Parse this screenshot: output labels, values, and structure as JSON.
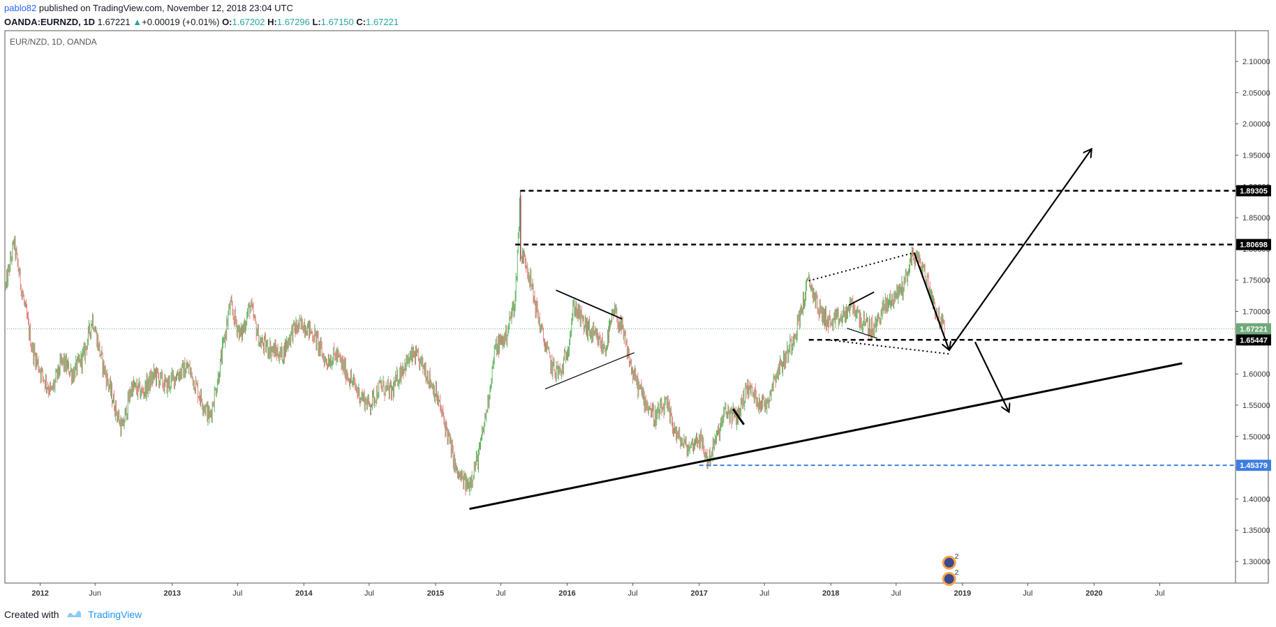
{
  "header": {
    "author": "pablo82",
    "published": "published on TradingView.com, November 12, 2018 23:04 UTC",
    "symbol": "OANDA:EURNZD, 1D",
    "last": "1.67221",
    "change_arrow": "▲",
    "change": "+0.00019 (+0.01%)",
    "o_label": "O:",
    "o_value": "1.67202",
    "h_label": "H:",
    "h_value": "1.67296",
    "l_label": "L:",
    "l_value": "1.67150",
    "c_label": "C:",
    "c_value": "1.67221"
  },
  "footer": {
    "created_with": "Created with",
    "brand": "TradingView"
  },
  "colors": {
    "up": "#26a69a",
    "down": "#ef5350",
    "candle_up": "#4caf50",
    "candle_down": "#e57373",
    "drawing": "#000000",
    "support_blue": "#3d7fe0",
    "last_price_bg": "#6fa978",
    "grid": "#eaeaea"
  },
  "chart_data": {
    "type": "candlestick",
    "title": "EUR/NZD, 1D, OANDA",
    "ylim": [
      1.27,
      2.13
    ],
    "y_ticks": [
      "2.10000",
      "2.05000",
      "2.00000",
      "1.95000",
      "1.90000",
      "1.85000",
      "1.80000",
      "1.75000",
      "1.70000",
      "1.65000",
      "1.60000",
      "1.55000",
      "1.50000",
      "1.45000",
      "1.40000",
      "1.35000",
      "1.30000"
    ],
    "x_ticks": [
      {
        "label": "2012",
        "date": "2012-01-01",
        "bold": true
      },
      {
        "label": "Jun",
        "date": "2012-06-01",
        "bold": false
      },
      {
        "label": "2013",
        "date": "2013-01-01",
        "bold": true
      },
      {
        "label": "Jul",
        "date": "2013-07-01",
        "bold": false
      },
      {
        "label": "2014",
        "date": "2014-01-01",
        "bold": true
      },
      {
        "label": "Jul",
        "date": "2014-07-01",
        "bold": false
      },
      {
        "label": "2015",
        "date": "2015-01-01",
        "bold": true
      },
      {
        "label": "Jul",
        "date": "2015-07-01",
        "bold": false
      },
      {
        "label": "2016",
        "date": "2016-01-01",
        "bold": true
      },
      {
        "label": "Jul",
        "date": "2016-07-01",
        "bold": false
      },
      {
        "label": "2017",
        "date": "2017-01-01",
        "bold": true
      },
      {
        "label": "Jul",
        "date": "2017-07-01",
        "bold": false
      },
      {
        "label": "2018",
        "date": "2018-01-01",
        "bold": true
      },
      {
        "label": "Jul",
        "date": "2018-07-01",
        "bold": false
      },
      {
        "label": "2019",
        "date": "2019-01-01",
        "bold": true
      },
      {
        "label": "Jul",
        "date": "2019-07-01",
        "bold": false
      },
      {
        "label": "2020",
        "date": "2020-01-01",
        "bold": true
      },
      {
        "label": "Jul",
        "date": "2020-07-01",
        "bold": false
      }
    ],
    "price_path": [
      [
        "2011-09-28",
        1.74
      ],
      [
        "2011-10-20",
        1.81
      ],
      [
        "2011-11-15",
        1.72
      ],
      [
        "2011-12-10",
        1.64
      ],
      [
        "2012-01-05",
        1.6
      ],
      [
        "2012-02-01",
        1.57
      ],
      [
        "2012-03-01",
        1.62
      ],
      [
        "2012-04-01",
        1.6
      ],
      [
        "2012-05-01",
        1.63
      ],
      [
        "2012-05-25",
        1.69
      ],
      [
        "2012-06-20",
        1.62
      ],
      [
        "2012-07-20",
        1.56
      ],
      [
        "2012-08-15",
        1.51
      ],
      [
        "2012-09-10",
        1.58
      ],
      [
        "2012-10-10",
        1.57
      ],
      [
        "2012-11-15",
        1.6
      ],
      [
        "2012-12-15",
        1.58
      ],
      [
        "2013-01-15",
        1.6
      ],
      [
        "2013-02-15",
        1.61
      ],
      [
        "2013-03-15",
        1.57
      ],
      [
        "2013-04-15",
        1.53
      ],
      [
        "2013-05-10",
        1.6
      ],
      [
        "2013-06-10",
        1.71
      ],
      [
        "2013-07-10",
        1.66
      ],
      [
        "2013-08-05",
        1.71
      ],
      [
        "2013-09-01",
        1.65
      ],
      [
        "2013-10-01",
        1.64
      ],
      [
        "2013-11-01",
        1.63
      ],
      [
        "2013-12-01",
        1.67
      ],
      [
        "2014-01-01",
        1.68
      ],
      [
        "2014-02-01",
        1.66
      ],
      [
        "2014-03-01",
        1.62
      ],
      [
        "2014-04-01",
        1.63
      ],
      [
        "2014-05-01",
        1.6
      ],
      [
        "2014-06-01",
        1.57
      ],
      [
        "2014-07-01",
        1.55
      ],
      [
        "2014-08-01",
        1.58
      ],
      [
        "2014-09-01",
        1.57
      ],
      [
        "2014-10-01",
        1.61
      ],
      [
        "2014-11-01",
        1.63
      ],
      [
        "2014-12-01",
        1.61
      ],
      [
        "2015-01-01",
        1.57
      ],
      [
        "2015-02-01",
        1.51
      ],
      [
        "2015-03-01",
        1.44
      ],
      [
        "2015-04-01",
        1.42
      ],
      [
        "2015-05-01",
        1.47
      ],
      [
        "2015-05-25",
        1.55
      ],
      [
        "2015-06-15",
        1.64
      ],
      [
        "2015-07-15",
        1.66
      ],
      [
        "2015-08-10",
        1.72
      ],
      [
        "2015-08-24",
        1.89
      ],
      [
        "2015-08-26",
        1.79
      ],
      [
        "2015-09-10",
        1.78
      ],
      [
        "2015-10-01",
        1.72
      ],
      [
        "2015-10-25",
        1.66
      ],
      [
        "2015-11-20",
        1.61
      ],
      [
        "2015-12-15",
        1.6
      ],
      [
        "2016-01-05",
        1.65
      ],
      [
        "2016-01-20",
        1.71
      ],
      [
        "2016-02-15",
        1.68
      ],
      [
        "2016-03-15",
        1.66
      ],
      [
        "2016-04-15",
        1.64
      ],
      [
        "2016-05-10",
        1.7
      ],
      [
        "2016-06-01",
        1.67
      ],
      [
        "2016-07-01",
        1.6
      ],
      [
        "2016-08-01",
        1.56
      ],
      [
        "2016-09-01",
        1.53
      ],
      [
        "2016-10-01",
        1.55
      ],
      [
        "2016-11-01",
        1.5
      ],
      [
        "2016-12-01",
        1.48
      ],
      [
        "2017-01-01",
        1.5
      ],
      [
        "2017-01-25",
        1.46
      ],
      [
        "2017-02-20",
        1.5
      ],
      [
        "2017-03-15",
        1.54
      ],
      [
        "2017-04-15",
        1.53
      ],
      [
        "2017-05-15",
        1.58
      ],
      [
        "2017-06-10",
        1.56
      ],
      [
        "2017-07-05",
        1.55
      ],
      [
        "2017-08-01",
        1.6
      ],
      [
        "2017-09-01",
        1.63
      ],
      [
        "2017-10-01",
        1.68
      ],
      [
        "2017-11-01",
        1.75
      ],
      [
        "2017-12-01",
        1.7
      ],
      [
        "2018-01-01",
        1.68
      ],
      [
        "2018-02-01",
        1.69
      ],
      [
        "2018-03-01",
        1.71
      ],
      [
        "2018-04-01",
        1.68
      ],
      [
        "2018-05-01",
        1.67
      ],
      [
        "2018-05-20",
        1.7
      ],
      [
        "2018-06-20",
        1.72
      ],
      [
        "2018-07-20",
        1.74
      ],
      [
        "2018-08-15",
        1.79
      ],
      [
        "2018-09-05",
        1.78
      ],
      [
        "2018-09-25",
        1.75
      ],
      [
        "2018-10-20",
        1.7
      ],
      [
        "2018-11-12",
        1.67221
      ]
    ],
    "horizontal_levels": [
      {
        "price": 1.89305,
        "label": "1.89305",
        "style": "dashed-black",
        "start": "2015-08-24"
      },
      {
        "price": 1.80698,
        "label": "1.80698",
        "style": "dashed-black",
        "start": "2015-08-10"
      },
      {
        "price": 1.65447,
        "label": "1.65447",
        "style": "dashed-black",
        "start": "2017-11-01"
      },
      {
        "price": 1.45379,
        "label": "1.45379",
        "style": "dashed-blue",
        "start": "2017-01-01"
      }
    ],
    "last_price": {
      "price": 1.67221,
      "label": "1.67221"
    },
    "trendlines": [
      {
        "name": "long-term-support",
        "style": "thick",
        "from": [
          "2015-04-05",
          1.384
        ],
        "to": [
          "2020-09-01",
          1.617
        ]
      },
      {
        "name": "triangle-upper",
        "style": "solid",
        "from": [
          "2015-12-01",
          1.734
        ],
        "to": [
          "2016-06-01",
          1.688
        ]
      },
      {
        "name": "triangle-lower",
        "style": "thin",
        "from": [
          "2015-11-01",
          1.576
        ],
        "to": [
          "2016-07-05",
          1.634
        ]
      },
      {
        "name": "wedge-upper",
        "style": "dotted",
        "from": [
          "2017-11-01",
          1.749
        ],
        "to": [
          "2018-08-20",
          1.794
        ]
      },
      {
        "name": "wedge-lower",
        "style": "dotted",
        "from": [
          "2018-01-01",
          1.654
        ],
        "to": [
          "2018-11-25",
          1.632
        ]
      },
      {
        "name": "flag-upper",
        "style": "solid",
        "from": [
          "2018-02-20",
          1.71
        ],
        "to": [
          "2018-05-01",
          1.731
        ]
      },
      {
        "name": "flag-lower",
        "style": "thin",
        "from": [
          "2018-02-15",
          1.673
        ],
        "to": [
          "2018-05-10",
          1.657
        ]
      },
      {
        "name": "small-drop",
        "style": "thick",
        "from": [
          "2017-04-05",
          1.544
        ],
        "to": [
          "2017-05-05",
          1.519
        ]
      },
      {
        "name": "projection-down",
        "style": "arrow",
        "from": [
          "2018-08-20",
          1.794
        ],
        "to": [
          "2018-11-25",
          1.638
        ]
      },
      {
        "name": "projection-up",
        "style": "arrow",
        "from": [
          "2018-11-25",
          1.638
        ],
        "to": [
          "2019-12-25",
          1.96
        ]
      },
      {
        "name": "alt-projection-down",
        "style": "arrow",
        "from": [
          "2019-02-05",
          1.651
        ],
        "to": [
          "2019-05-10",
          1.539
        ]
      }
    ],
    "event_markers": [
      {
        "date": "2018-11-25",
        "price": 1.298,
        "label": "2"
      },
      {
        "date": "2018-11-25",
        "price": 1.272,
        "label": "2"
      }
    ]
  }
}
